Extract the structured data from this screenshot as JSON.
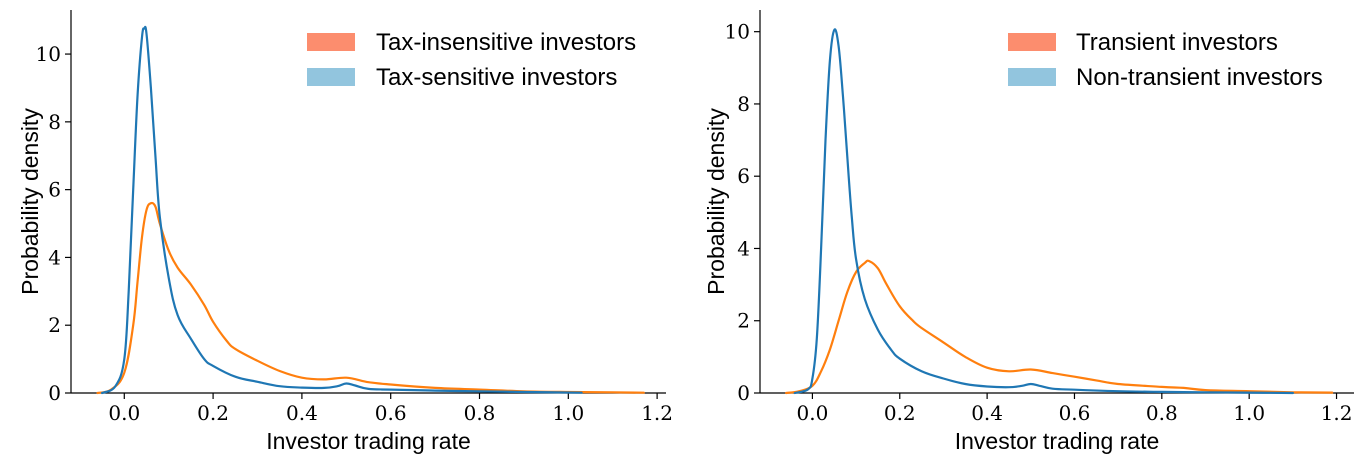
{
  "colors": {
    "orange_line": "#ff7f0e",
    "blue_line": "#1f77b4",
    "orange_patch": "#fc8d6e",
    "blue_patch": "#92c5de"
  },
  "chart_data": [
    {
      "type": "line",
      "subtype": "kde-density",
      "xlabel": "Investor trading rate",
      "ylabel": "Probability density",
      "xlim": [
        -0.12,
        1.22
      ],
      "ylim": [
        0,
        11.3
      ],
      "xticks": [
        0.0,
        0.2,
        0.4,
        0.6,
        0.8,
        1.0,
        1.2
      ],
      "xtick_labels": [
        "0.0",
        "0.2",
        "0.4",
        "0.6",
        "0.8",
        "1.0",
        "1.2"
      ],
      "yticks": [
        0,
        2,
        4,
        6,
        8,
        10
      ],
      "ytick_labels": [
        "0",
        "2",
        "4",
        "6",
        "8",
        "10"
      ],
      "grid": false,
      "legend_position": "top-right",
      "series": [
        {
          "name": "Tax-insensitive investors",
          "color": "#ff7f0e",
          "legend_color": "#fc8d6e",
          "x": [
            -0.06,
            -0.03,
            0.0,
            0.02,
            0.03,
            0.04,
            0.05,
            0.06,
            0.07,
            0.08,
            0.1,
            0.12,
            0.15,
            0.18,
            0.2,
            0.23,
            0.25,
            0.3,
            0.35,
            0.4,
            0.45,
            0.5,
            0.55,
            0.6,
            0.7,
            0.8,
            0.9,
            1.0,
            1.1,
            1.17
          ],
          "y": [
            0.0,
            0.1,
            0.6,
            2.0,
            3.3,
            4.6,
            5.4,
            5.6,
            5.5,
            5.0,
            4.2,
            3.7,
            3.2,
            2.6,
            2.1,
            1.55,
            1.3,
            0.95,
            0.65,
            0.45,
            0.4,
            0.45,
            0.32,
            0.25,
            0.15,
            0.1,
            0.05,
            0.03,
            0.02,
            0.01
          ]
        },
        {
          "name": "Tax-sensitive investors",
          "color": "#1f77b4",
          "legend_color": "#92c5de",
          "x": [
            -0.05,
            -0.02,
            0.0,
            0.01,
            0.02,
            0.03,
            0.04,
            0.045,
            0.05,
            0.06,
            0.07,
            0.08,
            0.1,
            0.12,
            0.15,
            0.18,
            0.2,
            0.25,
            0.3,
            0.35,
            0.4,
            0.45,
            0.48,
            0.5,
            0.52,
            0.55,
            0.6,
            0.7,
            0.8,
            0.9,
            1.03
          ],
          "y": [
            0.0,
            0.2,
            1.0,
            3.0,
            6.0,
            8.8,
            10.5,
            10.75,
            10.6,
            9.0,
            7.0,
            5.2,
            3.4,
            2.3,
            1.6,
            1.0,
            0.8,
            0.48,
            0.33,
            0.2,
            0.16,
            0.15,
            0.2,
            0.28,
            0.22,
            0.12,
            0.1,
            0.07,
            0.05,
            0.03,
            0.01
          ]
        }
      ]
    },
    {
      "type": "line",
      "subtype": "kde-density",
      "xlabel": "Investor trading rate",
      "ylabel": "Probability density",
      "xlim": [
        -0.12,
        1.24
      ],
      "ylim": [
        0,
        10.6
      ],
      "xticks": [
        0.0,
        0.2,
        0.4,
        0.6,
        0.8,
        1.0,
        1.2
      ],
      "xtick_labels": [
        "0.0",
        "0.2",
        "0.4",
        "0.6",
        "0.8",
        "1.0",
        "1.2"
      ],
      "yticks": [
        0,
        2,
        4,
        6,
        8,
        10
      ],
      "ytick_labels": [
        "0",
        "2",
        "4",
        "6",
        "8",
        "10"
      ],
      "grid": false,
      "legend_position": "top-right",
      "series": [
        {
          "name": "Transient investors",
          "color": "#ff7f0e",
          "legend_color": "#fc8d6e",
          "x": [
            -0.06,
            -0.03,
            0.0,
            0.02,
            0.04,
            0.06,
            0.08,
            0.1,
            0.12,
            0.13,
            0.15,
            0.17,
            0.2,
            0.23,
            0.25,
            0.3,
            0.35,
            0.4,
            0.45,
            0.5,
            0.55,
            0.6,
            0.65,
            0.7,
            0.8,
            0.85,
            0.9,
            1.0,
            1.1,
            1.19
          ],
          "y": [
            0.0,
            0.05,
            0.2,
            0.6,
            1.2,
            2.0,
            2.8,
            3.35,
            3.6,
            3.65,
            3.45,
            3.0,
            2.4,
            2.0,
            1.8,
            1.4,
            1.0,
            0.7,
            0.6,
            0.65,
            0.55,
            0.45,
            0.35,
            0.25,
            0.17,
            0.14,
            0.08,
            0.05,
            0.02,
            0.01
          ]
        },
        {
          "name": "Non-transient investors",
          "color": "#1f77b4",
          "legend_color": "#92c5de",
          "x": [
            -0.04,
            -0.01,
            0.0,
            0.01,
            0.02,
            0.03,
            0.04,
            0.05,
            0.06,
            0.07,
            0.08,
            0.09,
            0.1,
            0.12,
            0.15,
            0.18,
            0.2,
            0.25,
            0.3,
            0.35,
            0.4,
            0.45,
            0.48,
            0.5,
            0.52,
            0.55,
            0.6,
            0.7,
            0.8,
            0.9,
            1.0,
            1.1
          ],
          "y": [
            0.0,
            0.1,
            0.4,
            1.5,
            4.0,
            7.0,
            9.2,
            10.05,
            9.6,
            8.2,
            6.5,
            4.9,
            3.7,
            2.6,
            1.75,
            1.2,
            0.95,
            0.6,
            0.4,
            0.25,
            0.18,
            0.16,
            0.2,
            0.25,
            0.2,
            0.12,
            0.09,
            0.05,
            0.03,
            0.02,
            0.01,
            0.0
          ]
        }
      ]
    }
  ]
}
